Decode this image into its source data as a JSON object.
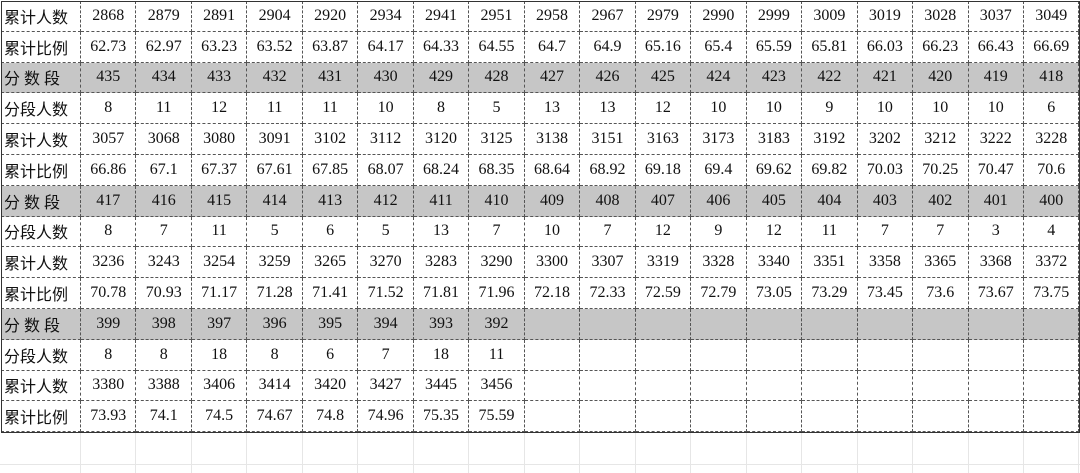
{
  "table": {
    "rows": [
      {
        "label": "累计人数",
        "cells": [
          "2868",
          "2879",
          "2891",
          "2904",
          "2920",
          "2934",
          "2941",
          "2951",
          "2958",
          "2967",
          "2979",
          "2990",
          "2999",
          "3009",
          "3019",
          "3028",
          "3037",
          "3049"
        ]
      },
      {
        "label": "累计比例",
        "cells": [
          "62.73",
          "62.97",
          "63.23",
          "63.52",
          "63.87",
          "64.17",
          "64.33",
          "64.55",
          "64.7",
          "64.9",
          "65.16",
          "65.4",
          "65.59",
          "65.81",
          "66.03",
          "66.23",
          "66.43",
          "66.69"
        ]
      },
      {
        "label": "分 数 段",
        "cells": [
          "435",
          "434",
          "433",
          "432",
          "431",
          "430",
          "429",
          "428",
          "427",
          "426",
          "425",
          "424",
          "423",
          "422",
          "421",
          "420",
          "419",
          "418"
        ]
      },
      {
        "label": "分段人数",
        "cells": [
          "8",
          "11",
          "12",
          "11",
          "11",
          "10",
          "8",
          "5",
          "13",
          "13",
          "12",
          "10",
          "10",
          "9",
          "10",
          "10",
          "10",
          "6"
        ]
      },
      {
        "label": "累计人数",
        "cells": [
          "3057",
          "3068",
          "3080",
          "3091",
          "3102",
          "3112",
          "3120",
          "3125",
          "3138",
          "3151",
          "3163",
          "3173",
          "3183",
          "3192",
          "3202",
          "3212",
          "3222",
          "3228"
        ]
      },
      {
        "label": "累计比例",
        "cells": [
          "66.86",
          "67.1",
          "67.37",
          "67.61",
          "67.85",
          "68.07",
          "68.24",
          "68.35",
          "68.64",
          "68.92",
          "69.18",
          "69.4",
          "69.62",
          "69.82",
          "70.03",
          "70.25",
          "70.47",
          "70.6"
        ]
      },
      {
        "label": "分  数  段",
        "cells": [
          "417",
          "416",
          "415",
          "414",
          "413",
          "412",
          "411",
          "410",
          "409",
          "408",
          "407",
          "406",
          "405",
          "404",
          "403",
          "402",
          "401",
          "400"
        ]
      },
      {
        "label": "分段人数",
        "cells": [
          "8",
          "7",
          "11",
          "5",
          "6",
          "5",
          "13",
          "7",
          "10",
          "7",
          "12",
          "9",
          "12",
          "11",
          "7",
          "7",
          "3",
          "4"
        ]
      },
      {
        "label": "累计人数",
        "cells": [
          "3236",
          "3243",
          "3254",
          "3259",
          "3265",
          "3270",
          "3283",
          "3290",
          "3300",
          "3307",
          "3319",
          "3328",
          "3340",
          "3351",
          "3358",
          "3365",
          "3368",
          "3372"
        ]
      },
      {
        "label": "累计比例",
        "cells": [
          "70.78",
          "70.93",
          "71.17",
          "71.28",
          "71.41",
          "71.52",
          "71.81",
          "71.96",
          "72.18",
          "72.33",
          "72.59",
          "72.79",
          "73.05",
          "73.29",
          "73.45",
          "73.6",
          "73.67",
          "73.75"
        ]
      },
      {
        "label": "分 数 段",
        "cells": [
          "399",
          "398",
          "397",
          "396",
          "395",
          "394",
          "393",
          "392"
        ]
      },
      {
        "label": "分段人数",
        "cells": [
          "8",
          "8",
          "18",
          "8",
          "6",
          "7",
          "18",
          "11"
        ]
      },
      {
        "label": "累计人数",
        "cells": [
          "3380",
          "3388",
          "3406",
          "3414",
          "3420",
          "3427",
          "3445",
          "3456"
        ]
      },
      {
        "label": "累计比例",
        "cells": [
          "73.93",
          "74.1",
          "74.5",
          "74.67",
          "74.8",
          "74.96",
          "75.35",
          "75.59"
        ]
      }
    ]
  }
}
